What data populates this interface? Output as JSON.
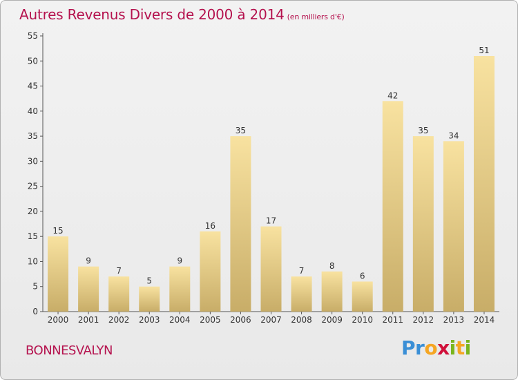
{
  "title": {
    "main": "Autres Revenus Divers de 2000 à 2014",
    "unit": "(en milliers d'€)"
  },
  "location": "BONNESVALYN",
  "logo": {
    "letters": [
      {
        "char": "P",
        "color": "#3a8fd6"
      },
      {
        "char": "r",
        "color": "#3a8fd6"
      },
      {
        "char": "o",
        "color": "#f5a623"
      },
      {
        "char": "x",
        "color": "#d0103a"
      },
      {
        "char": "i",
        "color": "#7ab51d"
      },
      {
        "char": "t",
        "color": "#f5a623"
      },
      {
        "char": "i",
        "color": "#7ab51d"
      }
    ]
  },
  "colors": {
    "title": "#b5124e",
    "bar_light": "#f8e2a0",
    "bar_dark": "#c8ad68"
  },
  "chart_data": {
    "type": "bar",
    "title": "Autres Revenus Divers de 2000 à 2014",
    "subtitle": "(en milliers d'€)",
    "xlabel": "",
    "ylabel": "",
    "categories": [
      "2000",
      "2001",
      "2002",
      "2003",
      "2004",
      "2005",
      "2006",
      "2007",
      "2008",
      "2009",
      "2010",
      "2011",
      "2012",
      "2013",
      "2014"
    ],
    "values": [
      15,
      9,
      7,
      5,
      9,
      16,
      35,
      17,
      7,
      8,
      6,
      42,
      35,
      34,
      51
    ],
    "ylim": [
      0,
      55
    ],
    "yticks": [
      0,
      5,
      10,
      15,
      20,
      25,
      30,
      35,
      40,
      45,
      50,
      55
    ],
    "grid": false,
    "legend": "none"
  }
}
